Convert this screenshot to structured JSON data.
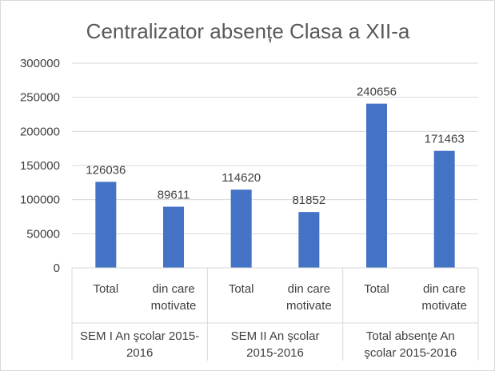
{
  "chart_data": {
    "type": "bar",
    "title": "Centralizator absențe Clasa a XII-a",
    "xlabel": "",
    "ylabel": "",
    "ylim": [
      0,
      300000
    ],
    "yticks": [
      0,
      50000,
      100000,
      150000,
      200000,
      250000,
      300000
    ],
    "grid": true,
    "legend": "none",
    "color": "#4472C4",
    "groups": [
      {
        "label_lines": [
          "SEM I An şcolar 2015-",
          "2016"
        ],
        "categories": [
          {
            "label_lines": [
              "Total"
            ],
            "value": 126036
          },
          {
            "label_lines": [
              "din care",
              "motivate"
            ],
            "value": 89611
          }
        ]
      },
      {
        "label_lines": [
          "SEM II An şcolar",
          "2015-2016"
        ],
        "categories": [
          {
            "label_lines": [
              "Total"
            ],
            "value": 114620
          },
          {
            "label_lines": [
              "din care",
              "motivate"
            ],
            "value": 81852
          }
        ]
      },
      {
        "label_lines": [
          "Total absenţe An",
          "şcolar 2015-2016"
        ],
        "categories": [
          {
            "label_lines": [
              "Total"
            ],
            "value": 240656
          },
          {
            "label_lines": [
              "din care",
              "motivate"
            ],
            "value": 171463
          }
        ]
      }
    ]
  }
}
